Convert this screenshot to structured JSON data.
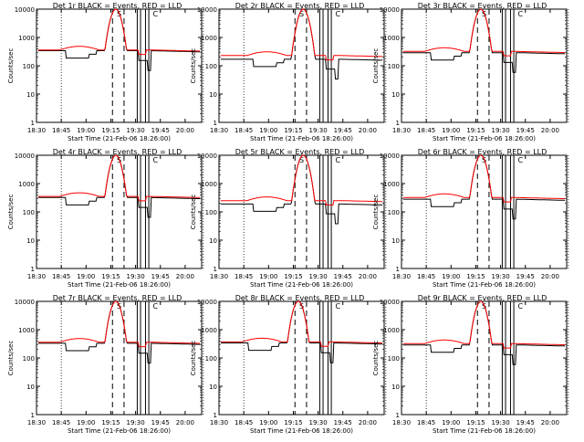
{
  "chart_data": [
    {
      "type": "line",
      "title": "Det 1r BLACK = Events, RED = LLD",
      "events_base": 340,
      "lld_base": 360,
      "offset": 0,
      "xlabel": "Start Time (21-Feb-06 18:26:00)",
      "ylabel": "Counts/sec"
    },
    {
      "type": "line",
      "title": "Det 2r BLACK = Events, RED = LLD",
      "events_base": 170,
      "lld_base": 230,
      "offset": 3,
      "xlabel": "Start Time (21-Feb-06 18:26:00)",
      "ylabel": "Counts/sec"
    },
    {
      "type": "line",
      "title": "Det 3r BLACK = Events, RED = LLD",
      "events_base": 290,
      "lld_base": 320,
      "offset": 0,
      "xlabel": "Start Time (21-Feb-06 18:26:00)",
      "ylabel": "Counts/sec"
    },
    {
      "type": "line",
      "title": "Det 4r BLACK = Events, RED = LLD",
      "events_base": 320,
      "lld_base": 350,
      "offset": 0,
      "xlabel": "Start Time (21-Feb-06 18:26:00)",
      "ylabel": "Counts/sec"
    },
    {
      "type": "line",
      "title": "Det 5r BLACK = Events, RED = LLD",
      "events_base": 190,
      "lld_base": 250,
      "offset": 3,
      "xlabel": "Start Time (21-Feb-06 18:26:00)",
      "ylabel": "Counts/sec"
    },
    {
      "type": "line",
      "title": "Det 6r BLACK = Events, RED = LLD",
      "events_base": 280,
      "lld_base": 320,
      "offset": 0,
      "xlabel": "Start Time (21-Feb-06 18:26:00)",
      "ylabel": "Counts/sec"
    },
    {
      "type": "line",
      "title": "Det 7r BLACK = Events, RED = LLD",
      "events_base": 330,
      "lld_base": 360,
      "offset": 0,
      "xlabel": "Start Time (21-Feb-06 18:26:00)",
      "ylabel": "Counts/sec"
    },
    {
      "type": "line",
      "title": "Det 8r BLACK = Events, RED = LLD",
      "events_base": 340,
      "lld_base": 370,
      "offset": 0,
      "xlabel": "Start Time (21-Feb-06 18:26:00)",
      "ylabel": "Counts/sec"
    },
    {
      "type": "line",
      "title": "Det 9r BLACK = Events, RED = LLD",
      "events_base": 290,
      "lld_base": 320,
      "offset": 0,
      "xlabel": "Start Time (21-Feb-06 18:26:00)",
      "ylabel": "Counts/sec"
    }
  ],
  "axes": {
    "x_ticks": [
      "18:30",
      "18:45",
      "19:00",
      "19:15",
      "19:30",
      "19:45",
      "20:00"
    ],
    "y_ticks": [
      "1",
      "10",
      "100",
      "1000",
      "10000"
    ],
    "y_scale": "log",
    "ylim": [
      1,
      10000
    ]
  },
  "markers": {
    "dotted_times_min": [
      15,
      101
    ],
    "dashed_times_min": [
      46,
      53
    ],
    "solid_times_min": [
      61,
      63,
      66,
      68
    ],
    "s_label": "S",
    "c_label": "C"
  },
  "series_style": {
    "events_color": "#000000",
    "lld_color": "#ff0000"
  }
}
